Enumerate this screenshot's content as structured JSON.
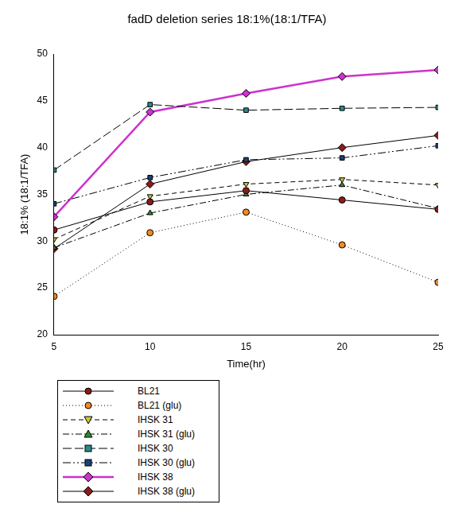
{
  "chart_data": {
    "type": "line",
    "title": "fadD deletion series 18:1%(18:1/TFA)",
    "x_label": "Time(hr)",
    "y_label": "18:1% (18:1/TFA)",
    "x": [
      5,
      10,
      15,
      20,
      25
    ],
    "xlim": [
      5,
      25
    ],
    "xticks": [
      5,
      10,
      15,
      20,
      25
    ],
    "ylim": [
      20,
      50
    ],
    "yticks": [
      20,
      25,
      30,
      35,
      40,
      45,
      50
    ],
    "grid": false,
    "legend": "bottom",
    "series": [
      {
        "name": "BL21",
        "color": "#8b1a1a",
        "marker": "circle",
        "line_style": "solid",
        "values": [
          31.2,
          34.2,
          35.4,
          34.4,
          33.4
        ]
      },
      {
        "name": "BL21 (glu)",
        "color": "#f28a1e",
        "marker": "circle",
        "line_style": "dotted",
        "values": [
          24.1,
          30.9,
          33.1,
          29.6,
          25.6
        ]
      },
      {
        "name": "IHSK 31",
        "color": "#c8c83c",
        "marker": "triangle_down",
        "line_style": "dashed",
        "values": [
          30.2,
          34.8,
          36.1,
          36.6,
          36.0
        ]
      },
      {
        "name": "IHSK 31 (glu)",
        "color": "#2e8b2e",
        "marker": "triangle",
        "line_style": "dashdot",
        "values": [
          29.3,
          33.0,
          35.0,
          36.0,
          33.5
        ]
      },
      {
        "name": "IHSK 30",
        "color": "#2a8a8a",
        "marker": "square",
        "line_style": "longdash",
        "values": [
          37.6,
          44.6,
          44.0,
          44.2,
          44.3
        ]
      },
      {
        "name": "IHSK 30 (glu)",
        "color": "#1f3f7a",
        "marker": "square",
        "line_style": "dashdotdot",
        "values": [
          34.0,
          36.8,
          38.7,
          38.9,
          40.2
        ]
      },
      {
        "name": "IHSK 38",
        "color": "#cc33cc",
        "marker": "diamond",
        "line_style": "bold",
        "values": [
          32.6,
          43.8,
          45.8,
          47.6,
          48.3
        ]
      },
      {
        "name": "IHSK 38 (glu)",
        "color": "#8b1a1a",
        "marker": "diamond",
        "line_style": "solid",
        "values": [
          29.2,
          36.1,
          38.5,
          40.0,
          41.3
        ]
      }
    ]
  }
}
